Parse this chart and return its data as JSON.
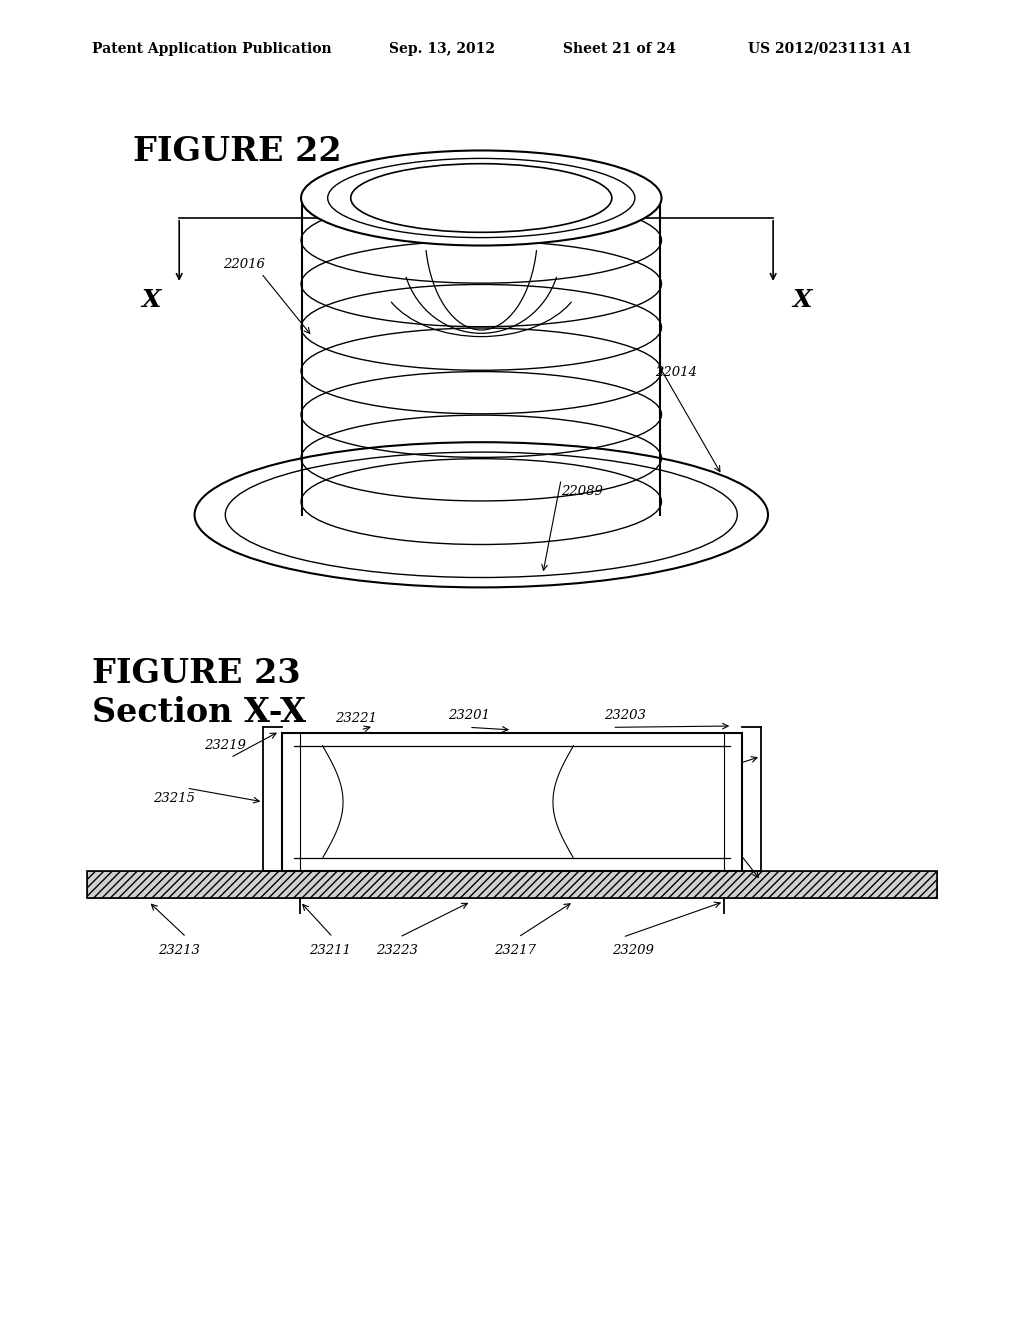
{
  "bg_color": "#ffffff",
  "header_text": "Patent Application Publication",
  "header_date": "Sep. 13, 2012",
  "header_sheet": "Sheet 21 of 24",
  "header_patent": "US 2012/0231131 A1",
  "fig22_title": "FIGURE 22",
  "fig23_title": "FIGURE 23",
  "fig23_subtitle": "Section X-X"
}
